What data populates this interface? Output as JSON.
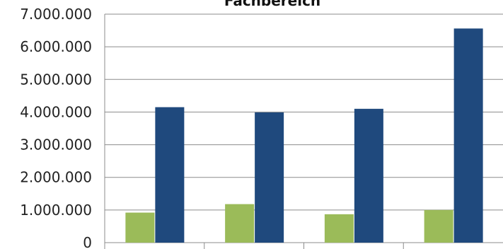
{
  "chart_data": {
    "type": "bar",
    "title": "Fachbereich",
    "xlabel": "",
    "ylabel": "",
    "ylim": [
      0,
      7000000
    ],
    "yticks": [
      0,
      1000000,
      2000000,
      3000000,
      4000000,
      5000000,
      6000000,
      7000000
    ],
    "ytick_labels": [
      "0",
      "1.000.000",
      "2.000.000",
      "3.000.000",
      "4.000.000",
      "5.000.000",
      "6.000.000",
      "7.000.000"
    ],
    "grid": true,
    "categories": [
      "",
      "",
      "",
      ""
    ],
    "series": [
      {
        "color": "#9bbb59",
        "values": [
          920000,
          1180000,
          870000,
          1000000
        ]
      },
      {
        "color": "#1f497d",
        "values": [
          4150000,
          3990000,
          4100000,
          6560000
        ]
      }
    ]
  }
}
